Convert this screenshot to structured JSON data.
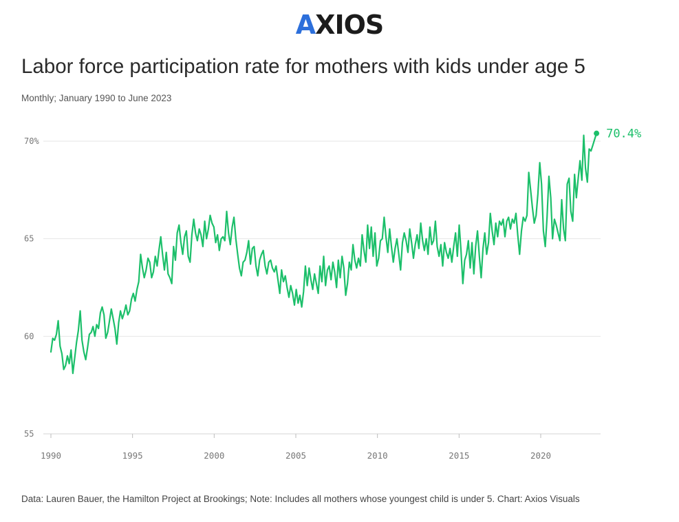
{
  "logo": {
    "text": "AXIOS",
    "accent": "#2c6fdb"
  },
  "title": "Labor force participation rate for mothers with kids under age 5",
  "subtitle": "Monthly; January 1990 to June 2023",
  "footer": "Data: Lauren Bauer, the Hamilton Project at Brookings; Note: Includes all mothers whose youngest child is under 5. Chart: Axios Visuals",
  "chart_data": {
    "type": "line",
    "x_type": "date",
    "x_start": "1990-01",
    "x_end": "2023-06",
    "xlim": [
      "1990-01",
      "2023-06"
    ],
    "ylim": [
      55,
      70.8
    ],
    "x_ticks": [
      "1990",
      "1995",
      "2000",
      "2005",
      "2010",
      "2015",
      "2020"
    ],
    "y_ticks": [
      {
        "value": 55,
        "label": "55"
      },
      {
        "value": 60,
        "label": "60"
      },
      {
        "value": 65,
        "label": "65"
      },
      {
        "value": 70,
        "label": "70%"
      }
    ],
    "grid": true,
    "line_color": "#1cbf6a",
    "last_value_label": "70.4%",
    "series": [
      {
        "values": [
          59.2,
          59.9,
          59.8,
          60.1,
          60.8,
          59.5,
          59.1,
          58.3,
          58.5,
          59.0,
          58.6,
          59.3,
          58.1,
          58.9,
          59.7,
          60.3,
          61.3,
          59.8,
          59.2,
          58.8,
          59.4,
          60.1,
          60.2,
          60.5,
          60.0,
          60.6,
          60.4,
          61.2,
          61.5,
          61.1,
          59.9,
          60.2,
          60.8,
          61.4,
          60.9,
          60.4,
          59.6,
          60.7,
          61.3,
          60.9,
          61.2,
          61.6,
          61.1,
          61.3,
          61.9,
          62.2,
          61.8,
          62.4,
          62.8,
          64.2,
          63.5,
          63.0,
          63.4,
          64.0,
          63.8,
          63.0,
          63.3,
          64.1,
          63.6,
          64.4,
          65.1,
          64.2,
          63.4,
          64.3,
          63.2,
          63.0,
          62.7,
          64.6,
          63.9,
          65.3,
          65.7,
          64.8,
          64.2,
          65.1,
          65.4,
          64.1,
          63.8,
          65.2,
          66.0,
          65.3,
          64.9,
          65.5,
          65.2,
          64.6,
          65.9,
          65.0,
          65.5,
          66.2,
          65.8,
          65.6,
          64.8,
          65.2,
          64.4,
          65.0,
          65.1,
          64.9,
          66.4,
          65.3,
          64.7,
          65.6,
          66.1,
          65.0,
          64.2,
          63.5,
          63.1,
          63.8,
          63.9,
          64.3,
          64.9,
          63.7,
          64.5,
          64.6,
          63.6,
          63.1,
          63.9,
          64.2,
          64.4,
          63.6,
          63.2,
          63.8,
          63.9,
          63.5,
          63.3,
          63.6,
          62.9,
          62.2,
          63.4,
          62.8,
          63.1,
          62.5,
          62.0,
          62.6,
          62.2,
          61.6,
          62.4,
          61.7,
          62.1,
          61.5,
          62.3,
          63.6,
          62.6,
          63.5,
          62.9,
          62.4,
          63.2,
          62.7,
          62.2,
          63.6,
          62.8,
          64.1,
          62.6,
          63.4,
          63.6,
          62.9,
          63.8,
          63.3,
          62.5,
          63.9,
          63.0,
          64.1,
          63.5,
          62.1,
          62.7,
          63.8,
          63.4,
          64.7,
          63.9,
          63.5,
          64.0,
          63.6,
          65.2,
          64.4,
          63.8,
          65.7,
          64.5,
          65.6,
          64.1,
          65.3,
          63.6,
          64.0,
          64.9,
          65.0,
          66.1,
          65.1,
          64.3,
          65.5,
          64.6,
          63.8,
          64.5,
          65.0,
          64.2,
          63.4,
          64.8,
          65.3,
          64.9,
          64.3,
          65.5,
          64.8,
          64.0,
          64.7,
          65.2,
          64.5,
          65.8,
          64.9,
          64.4,
          65.0,
          64.2,
          65.6,
          64.7,
          64.9,
          65.9,
          64.6,
          64.1,
          64.7,
          63.6,
          64.8,
          64.3,
          64.0,
          64.5,
          63.8,
          64.6,
          65.3,
          64.1,
          65.7,
          64.4,
          62.7,
          63.9,
          64.2,
          64.9,
          63.5,
          64.8,
          63.2,
          64.6,
          65.4,
          64.1,
          63.0,
          64.5,
          65.3,
          64.2,
          64.8,
          66.3,
          65.4,
          64.7,
          65.8,
          65.1,
          65.9,
          65.7,
          66.0,
          65.1,
          65.9,
          66.1,
          65.5,
          66.0,
          65.8,
          66.3,
          65.2,
          64.2,
          65.4,
          66.1,
          65.9,
          66.2,
          68.4,
          67.5,
          66.6,
          65.8,
          66.2,
          67.3,
          68.9,
          67.8,
          65.4,
          64.6,
          66.1,
          68.2,
          67.1,
          65.0,
          66.0,
          65.7,
          65.3,
          64.9,
          67.0,
          65.5,
          64.9,
          67.8,
          68.1,
          66.4,
          65.9,
          68.3,
          67.1,
          68.1,
          69.0,
          68.0,
          70.3,
          68.6,
          67.9,
          69.6,
          69.5,
          69.8,
          70.1,
          70.4
        ]
      }
    ]
  }
}
